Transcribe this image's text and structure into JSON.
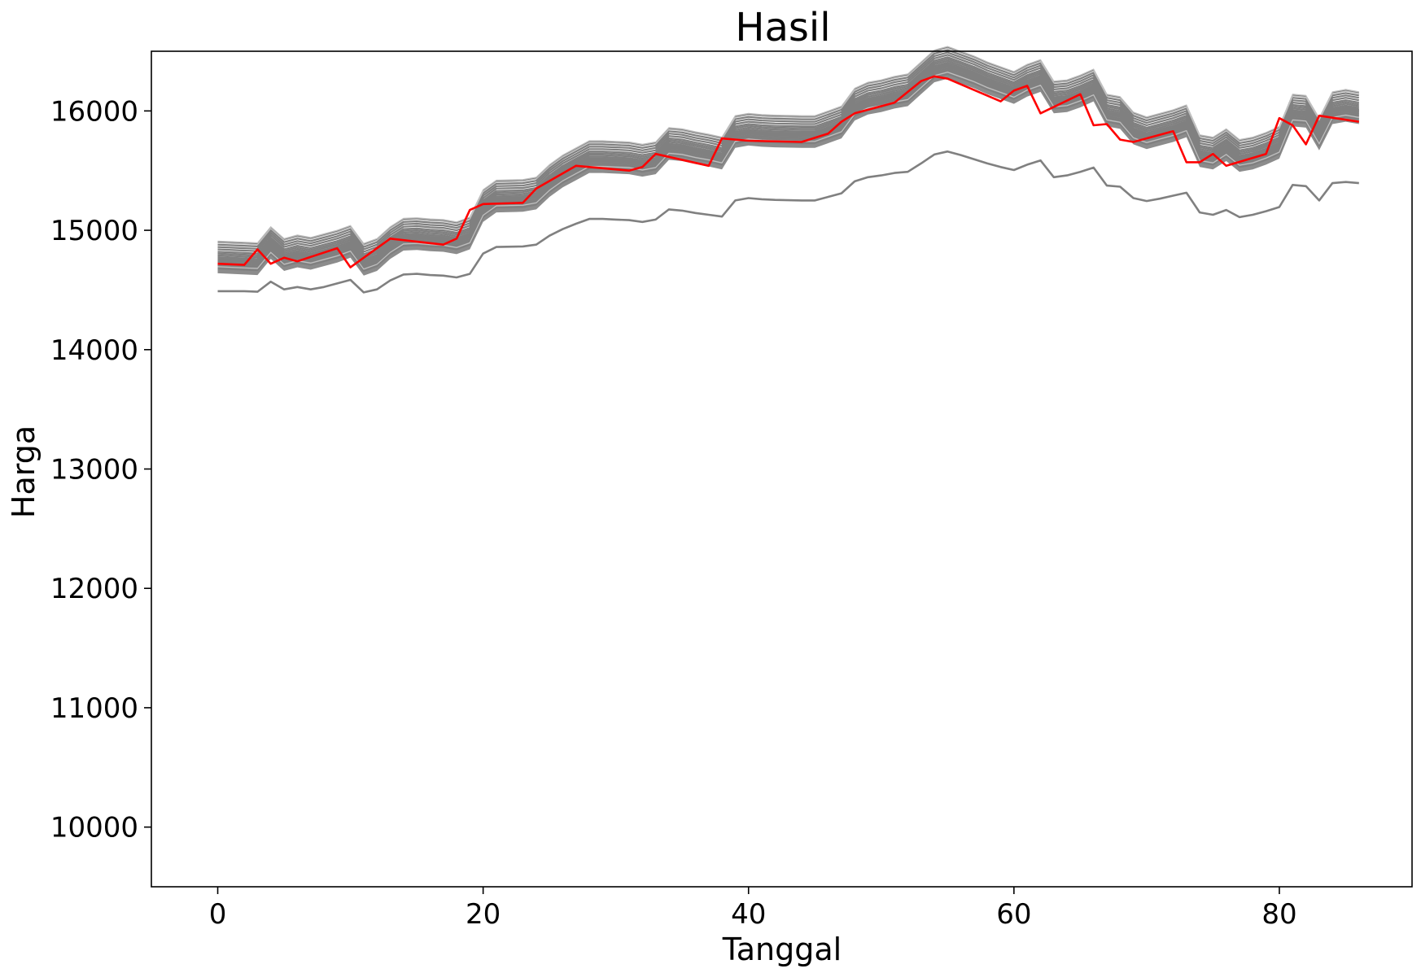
{
  "chart_data": {
    "type": "line",
    "title": "Hasil",
    "xlabel": "Tanggal",
    "ylabel": "Harga",
    "xlim": [
      -5,
      90
    ],
    "ylim": [
      9500,
      16500
    ],
    "x_ticks": [
      0,
      20,
      40,
      60,
      80
    ],
    "y_ticks": [
      10000,
      11000,
      12000,
      13000,
      14000,
      15000,
      16000
    ],
    "grid": false,
    "legend": "none",
    "colors": {
      "predicted": "#808080",
      "actual": "#ff0000"
    },
    "band_offsets": [
      -40,
      -25,
      -10,
      0,
      10,
      25,
      40,
      55,
      70,
      90,
      110,
      130,
      150,
      -70
    ],
    "series": [
      {
        "role": "predicted-band",
        "x": [
          0,
          2,
          3,
          4,
          5,
          6,
          7,
          8,
          9,
          10,
          11,
          12,
          13,
          14,
          15,
          16,
          17,
          18,
          19,
          20,
          21,
          23,
          24,
          25,
          26,
          27,
          28,
          29,
          30,
          31,
          32,
          33,
          34,
          35,
          36,
          37,
          38,
          39,
          40,
          41,
          42,
          44,
          45,
          46,
          47,
          48,
          49,
          50,
          51,
          52,
          53,
          54,
          55,
          56,
          57,
          58,
          59,
          60,
          61,
          62,
          63,
          64,
          65,
          66,
          67,
          68,
          69,
          70,
          71,
          72,
          73,
          74,
          75,
          76,
          77,
          78,
          79,
          80,
          81,
          82,
          83,
          84,
          85,
          86
        ],
        "values": [
          14750,
          14740,
          14735,
          14870,
          14770,
          14800,
          14780,
          14810,
          14840,
          14880,
          14730,
          14770,
          14870,
          14940,
          14945,
          14935,
          14930,
          14910,
          14950,
          15180,
          15260,
          15265,
          15285,
          15390,
          15470,
          15530,
          15590,
          15590,
          15585,
          15580,
          15560,
          15580,
          15700,
          15690,
          15665,
          15645,
          15620,
          15800,
          15820,
          15810,
          15805,
          15800,
          15800,
          15840,
          15880,
          16030,
          16080,
          16100,
          16130,
          16150,
          16250,
          16350,
          16380,
          16340,
          16300,
          16250,
          16210,
          16170,
          16230,
          16270,
          16090,
          16100,
          16140,
          16190,
          15980,
          15960,
          15830,
          15790,
          15820,
          15850,
          15890,
          15640,
          15620,
          15690,
          15600,
          15620,
          15660,
          15710,
          15980,
          15970,
          15780,
          16000,
          16020,
          16000
        ]
      },
      {
        "role": "predicted-lower",
        "x": [
          0,
          2,
          3,
          4,
          5,
          6,
          7,
          8,
          9,
          10,
          11,
          12,
          13,
          14,
          15,
          16,
          17,
          18,
          19,
          20,
          21,
          23,
          24,
          25,
          26,
          27,
          28,
          29,
          30,
          31,
          32,
          33,
          34,
          35,
          36,
          37,
          38,
          39,
          40,
          41,
          42,
          44,
          45,
          46,
          47,
          48,
          49,
          50,
          51,
          52,
          53,
          54,
          55,
          56,
          57,
          58,
          59,
          60,
          61,
          62,
          63,
          64,
          65,
          66,
          67,
          68,
          69,
          70,
          71,
          72,
          73,
          74,
          75,
          76,
          77,
          78,
          79,
          80,
          81,
          82,
          83,
          84,
          85,
          86
        ],
        "values": [
          14490,
          14490,
          14485,
          14570,
          14505,
          14525,
          14505,
          14525,
          14555,
          14585,
          14480,
          14505,
          14580,
          14630,
          14635,
          14625,
          14620,
          14605,
          14635,
          14805,
          14860,
          14865,
          14880,
          14955,
          15010,
          15055,
          15095,
          15095,
          15090,
          15085,
          15070,
          15090,
          15175,
          15165,
          15145,
          15130,
          15115,
          15250,
          15270,
          15260,
          15255,
          15250,
          15250,
          15280,
          15310,
          15410,
          15445,
          15460,
          15480,
          15490,
          15560,
          15635,
          15660,
          15630,
          15595,
          15560,
          15530,
          15505,
          15550,
          15585,
          15445,
          15460,
          15490,
          15525,
          15375,
          15365,
          15270,
          15245,
          15265,
          15290,
          15315,
          15150,
          15130,
          15170,
          15110,
          15130,
          15160,
          15195,
          15380,
          15370,
          15250,
          15395,
          15405,
          15395
        ]
      },
      {
        "role": "actual",
        "x": [
          0,
          2,
          3,
          4,
          5,
          6,
          9,
          10,
          13,
          17,
          18,
          19,
          20,
          23,
          24,
          27,
          31,
          32,
          33,
          37,
          38,
          40,
          44,
          46,
          47,
          48,
          51,
          53,
          54,
          55,
          59,
          60,
          61,
          62,
          65,
          66,
          67,
          68,
          69,
          72,
          73,
          74,
          75,
          76,
          79,
          80,
          81,
          82,
          83,
          86
        ],
        "values": [
          14720,
          14710,
          14840,
          14720,
          14770,
          14740,
          14850,
          14690,
          14930,
          14880,
          14930,
          15170,
          15220,
          15230,
          15350,
          15540,
          15500,
          15530,
          15640,
          15540,
          15770,
          15750,
          15740,
          15810,
          15910,
          15980,
          16070,
          16250,
          16290,
          16270,
          16080,
          16170,
          16210,
          15980,
          16140,
          15880,
          15890,
          15760,
          15740,
          15830,
          15570,
          15570,
          15640,
          15540,
          15640,
          15940,
          15880,
          15720,
          15960,
          15910
        ]
      }
    ]
  }
}
